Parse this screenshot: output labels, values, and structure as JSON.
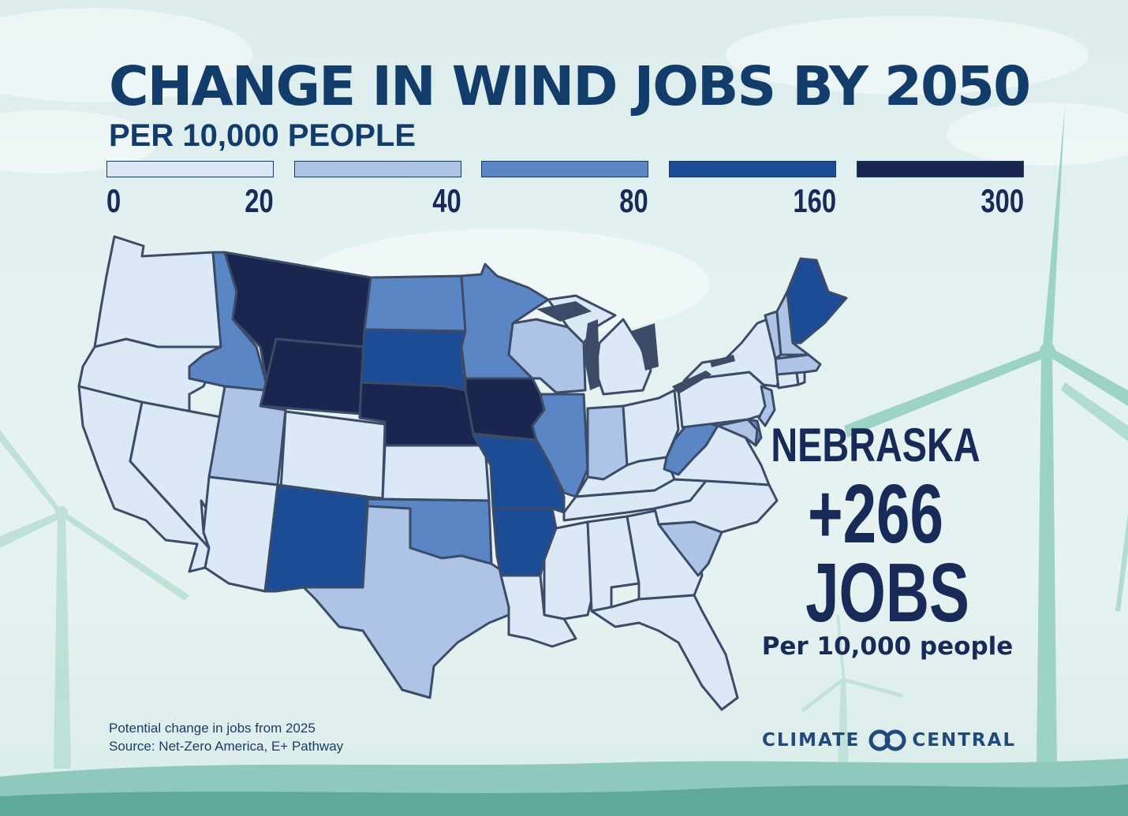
{
  "title": "CHANGE IN WIND JOBS BY 2050",
  "subtitle": "PER 10,000 PEOPLE",
  "legend": {
    "bins": [
      {
        "min": "0",
        "max": "20",
        "color": "#dbe8f5"
      },
      {
        "min": "",
        "max": "40",
        "color": "#adc4e6"
      },
      {
        "min": "",
        "max": "80",
        "color": "#5b86c5"
      },
      {
        "min": "",
        "max": "160",
        "color": "#1c4c96"
      },
      {
        "min": "",
        "max": "300",
        "color": "#182650"
      }
    ]
  },
  "map_data": {
    "type": "choropleth",
    "region": "Contiguous United States",
    "bin_by_state": {
      "WA": 0,
      "OR": 0,
      "CA": 0,
      "NV": 0,
      "AZ": 0,
      "CO": 0,
      "KS": 0,
      "LA": 0,
      "MS": 0,
      "AL": 0,
      "GA": 0,
      "FL": 0,
      "TN": 0,
      "KY": 0,
      "OH": 0,
      "MI": 0,
      "PA": 0,
      "NY": 0,
      "VA": 0,
      "NC": 0,
      "CT": 0,
      "RI": 0,
      "UT": 1,
      "TX": 1,
      "WI": 1,
      "IN": 1,
      "SC": 1,
      "NJ": 1,
      "MA": 1,
      "VT": 1,
      "NH": 1,
      "MD": 1,
      "ID": 2,
      "ND": 2,
      "MN": 2,
      "OK": 2,
      "IL": 2,
      "WV": 2,
      "DE": 2,
      "SD": 3,
      "NM": 3,
      "MO": 3,
      "AR": 3,
      "ME": 3,
      "MT": 4,
      "WY": 4,
      "NE": 4,
      "IA": 4
    },
    "highlight": {
      "state": "NEBRASKA",
      "value": "+266",
      "unit": "JOBS",
      "note": "Per 10,000 people"
    }
  },
  "colors": {
    "title": "#123c69",
    "state_border": "#3c4b68",
    "turbine": "#8ccbbd",
    "ground": "#86c4b8"
  },
  "footnote": {
    "line1": "Potential change in jobs from 2025",
    "line2": "Source: Net-Zero America, E+ Pathway"
  },
  "brand": {
    "left": "CLIMATE",
    "right": "CENTRAL",
    "logo_icon": "interlocked-rings-icon"
  }
}
